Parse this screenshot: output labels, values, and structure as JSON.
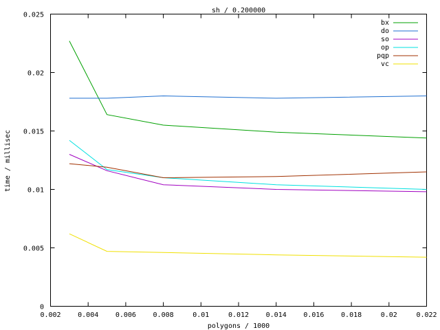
{
  "chart_data": {
    "type": "line",
    "title": "sh / 0.200000",
    "xlabel": "polygons / 1000",
    "ylabel": "time / millisec",
    "xlim": [
      0.002,
      0.022
    ],
    "ylim": [
      0,
      0.025
    ],
    "x_ticks": [
      {
        "v": 0.002,
        "label": "0.002"
      },
      {
        "v": 0.004,
        "label": "0.004"
      },
      {
        "v": 0.006,
        "label": "0.006"
      },
      {
        "v": 0.008,
        "label": "0.008"
      },
      {
        "v": 0.01,
        "label": "0.01"
      },
      {
        "v": 0.012,
        "label": "0.012"
      },
      {
        "v": 0.014,
        "label": "0.014"
      },
      {
        "v": 0.016,
        "label": "0.016"
      },
      {
        "v": 0.018,
        "label": "0.018"
      },
      {
        "v": 0.02,
        "label": "0.02"
      },
      {
        "v": 0.022,
        "label": "0.022"
      }
    ],
    "y_ticks": [
      {
        "v": 0,
        "label": "0"
      },
      {
        "v": 0.005,
        "label": "0.005"
      },
      {
        "v": 0.01,
        "label": "0.01"
      },
      {
        "v": 0.015,
        "label": "0.015"
      },
      {
        "v": 0.02,
        "label": "0.02"
      },
      {
        "v": 0.025,
        "label": "0.025"
      }
    ],
    "grid": false,
    "legend_position": "top-right",
    "x": [
      0.003,
      0.005,
      0.008,
      0.014,
      0.022
    ],
    "series": [
      {
        "name": "bx",
        "color": "#00a000",
        "values": [
          0.0227,
          0.0164,
          0.0155,
          0.0149,
          0.0144
        ]
      },
      {
        "name": "do",
        "color": "#1f6fd0",
        "values": [
          0.0178,
          0.0178,
          0.018,
          0.0178,
          0.018
        ]
      },
      {
        "name": "so",
        "color": "#a000c0",
        "values": [
          0.013,
          0.0116,
          0.0104,
          0.01,
          0.0098
        ]
      },
      {
        "name": "op",
        "color": "#00e0e0",
        "values": [
          0.0142,
          0.0117,
          0.011,
          0.0104,
          0.01
        ]
      },
      {
        "name": "pqp",
        "color": "#a03000",
        "values": [
          0.0122,
          0.0119,
          0.011,
          0.0111,
          0.0115
        ]
      },
      {
        "name": "vc",
        "color": "#f0e000",
        "values": [
          0.0062,
          0.0047,
          0.0046,
          0.0044,
          0.0042
        ]
      }
    ]
  }
}
